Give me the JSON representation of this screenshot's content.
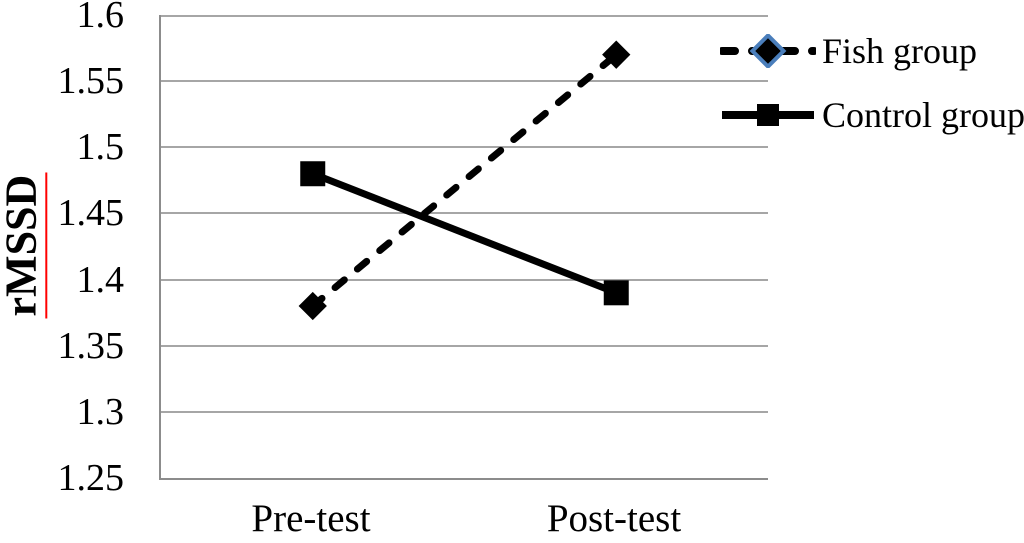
{
  "chart_data": {
    "type": "line",
    "title": "",
    "categories": [
      "Pre-test",
      "Post-test"
    ],
    "series": [
      {
        "name": "Fish group",
        "values": [
          1.38,
          1.57
        ],
        "line_style": "dashed",
        "marker": "diamond",
        "color": "#000000"
      },
      {
        "name": "Control group",
        "values": [
          1.48,
          1.39
        ],
        "line_style": "solid",
        "marker": "square",
        "color": "#000000"
      }
    ],
    "xlabel": "",
    "ylabel": "rMSSD",
    "ylim": [
      1.25,
      1.6
    ],
    "ytick_step": 0.05,
    "y_ticks": [
      "1.6",
      "1.55",
      "1.5",
      "1.45",
      "1.4",
      "1.35",
      "1.3",
      "1.25"
    ],
    "grid": "horizontal",
    "legend_position": "top-right"
  },
  "colors": {
    "series_line": "#000000",
    "gridline": "#a6a6a6",
    "axis": "#8c8c8c",
    "legend_diamond_outline": "#4a7ebb",
    "ylabel_underline": "#ff0000",
    "text": "#000000",
    "background": "#ffffff"
  }
}
